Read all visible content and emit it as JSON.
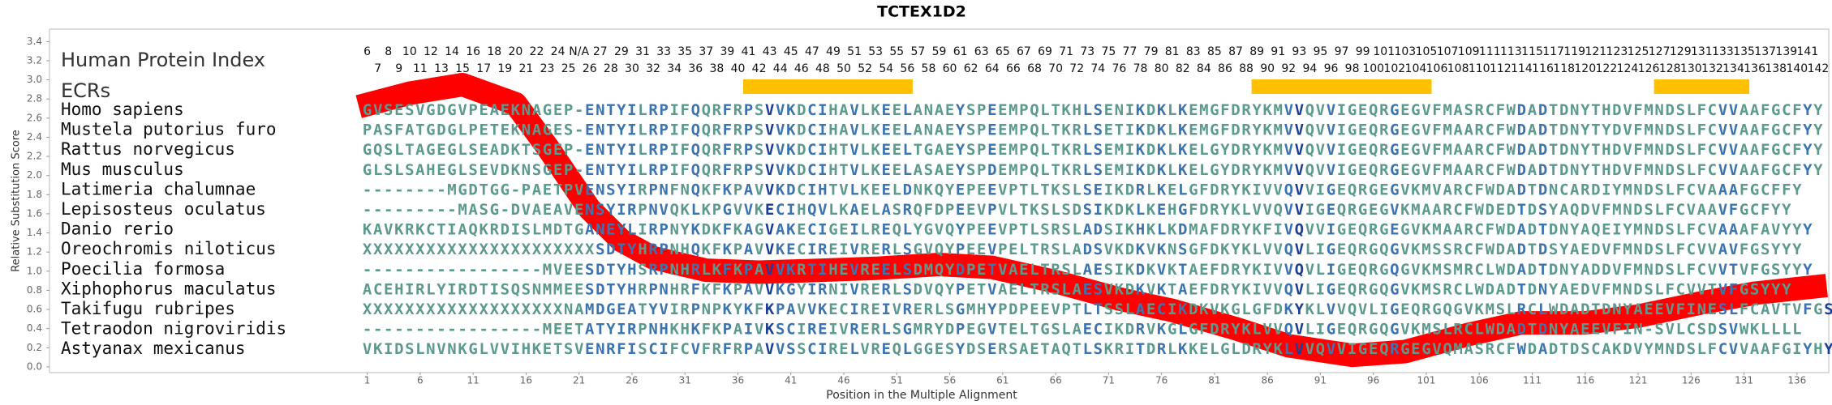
{
  "chart_data": {
    "type": "line",
    "title": "TCTEX1D2",
    "xlabel": "Position in the Multiple Alignment",
    "ylabel": "Relative Substitution Score",
    "index_label": "Human Protein Index",
    "ecr_label": "ECRs",
    "color": "#ff0000",
    "ecr_color": "#ffc000",
    "residue_colors": [
      "#5c9a8e",
      "#3c74b0",
      "#1c3f96"
    ],
    "xlim": [
      -29,
      139
    ],
    "ylim": [
      -0.06,
      3.53
    ],
    "xticks": [
      1,
      6,
      11,
      16,
      21,
      26,
      31,
      36,
      41,
      46,
      51,
      56,
      61,
      66,
      71,
      76,
      81,
      86,
      91,
      96,
      101,
      106,
      111,
      116,
      121,
      126,
      131,
      136
    ],
    "yticks": [
      {
        "value": 0,
        "label": "0.0"
      },
      0.2,
      0.4,
      0.6,
      0.8,
      {
        "value": 1,
        "label": "1.0"
      },
      1.2,
      1.4,
      1.6,
      1.8,
      {
        "value": 2,
        "label": "2.0"
      },
      2.2,
      2.4,
      2.6,
      2.8,
      {
        "value": 3,
        "label": "3.0"
      },
      3.2,
      3.4
    ],
    "x": [
      0.2,
      5,
      10,
      15,
      18,
      22,
      25,
      28,
      33,
      38,
      44,
      49,
      55,
      60,
      66,
      72,
      77,
      83,
      88,
      94,
      99,
      105,
      110,
      116,
      121,
      127,
      132,
      138.8
    ],
    "values": [
      2.72,
      2.86,
      2.95,
      2.75,
      2.3,
      1.65,
      1.32,
      1.14,
      1.01,
      0.99,
      1.01,
      1.03,
      1.07,
      1.04,
      0.89,
      0.71,
      0.59,
      0.4,
      0.22,
      0.12,
      0.16,
      0.34,
      0.46,
      0.46,
      0.53,
      0.67,
      0.77,
      0.85
    ],
    "ecrs": [
      [
        37,
        52
      ],
      [
        85,
        101
      ],
      [
        123,
        131
      ]
    ],
    "human_index": [
      6,
      7,
      8,
      9,
      10,
      11,
      12,
      13,
      14,
      15,
      16,
      17,
      18,
      19,
      20,
      21,
      22,
      23,
      24,
      25,
      "N/A",
      26,
      27,
      28,
      29,
      30,
      31,
      32,
      33,
      34,
      35,
      36,
      37,
      38,
      39,
      40,
      41,
      42,
      43,
      44,
      45,
      46,
      47,
      48,
      49,
      50,
      51,
      52,
      53,
      54,
      55,
      56,
      57,
      58,
      59,
      60,
      61,
      62,
      63,
      64,
      65,
      66,
      67,
      68,
      69,
      70,
      71,
      72,
      73,
      74,
      75,
      76,
      77,
      78,
      79,
      80,
      81,
      82,
      83,
      84,
      85,
      86,
      87,
      88,
      89,
      90,
      91,
      92,
      93,
      94,
      95,
      96,
      97,
      98,
      99,
      100,
      101,
      102,
      103,
      104,
      105,
      106,
      107,
      108,
      109,
      110,
      111,
      112,
      113,
      114,
      115,
      116,
      117,
      118,
      119,
      120,
      121,
      122,
      123,
      124,
      125,
      126,
      127,
      128,
      129,
      130,
      131,
      132,
      133,
      134,
      135,
      136,
      137,
      138,
      139,
      140,
      141,
      142
    ],
    "alignment": [
      {
        "name": "Homo sapiens",
        "sequence": "GVSESVGDGVPEAEKNAGEP-ENTYILRPIFQQRFRPSVVKDCIHAVLKEELANAEYSPEEMPQLTKHLSENIKDKLKEMGFDRYKMVVQVVIGEQRGEGVFMASRCFWDADTDNYTHDVFMNDSLFCVVAAFGCFYY"
      },
      {
        "name": "Mustela putorius furo",
        "sequence": "PASFATGDGLPETEKNAGES-ENTYILRPIFQQRFRPSVVKDCIHAVLKEELANAEYSPEEMPQLTKRLSETIKDKLKEMGFDRYKMVVQVVIGEQRGEGVFMAARCFWDADTDNYTYDVFMNDSLFCVVAAFGCFYY"
      },
      {
        "name": "Rattus norvegicus",
        "sequence": "GQSLTAGEGLSEADKTSGEP-ENTYILRPIFQQRFRPSVVKDCIHTVLKEELTGAEYSPEEMPQLTKRLSEMIKDKLKELGYDRYKMVVQVVIGEQRGEGVFMAARCFWDADTDNYTHDVFMNDSLFCVVAAFGCFYY"
      },
      {
        "name": "Mus musculus",
        "sequence": "GLSLSAHEGLSEVDKNSGEP-ENTYILRPIFQQRFRPSVVKDCIHTVLKEELASAEYSPDEMPQLTKRLSEMIKDKLKELGYDRYKMVVQVVIGEQRGEGVFMAARCFWDADTDNYTHDVFMNDSLFCVVAAFGCFYY"
      },
      {
        "name": "Latimeria chalumnae",
        "sequence": "--------MGDTGG-PAETPVENSYIRPNFNQKFKPAVVKDCIHTVLKEELDNKQYEPEEVPTLTKSLSEIKDRLKELGFDRYKIVVQVVIGEQRGEGVKMVARCFWDADTDNCARDIYMNDSLFCVAAAFGCFFY"
      },
      {
        "name": "Lepisosteus oculatus",
        "sequence": "---------MASG-DVAEAVENSYIRPNVQKLKPGVVKECIHQVLKAELASRQFDPEEVPVLTKSLSDSIKDKLKEHGFDRYKLVVQVVIGEQRGEGVKMAARCFWDEDTDSYAQDVFMNDSLFCVAAVFGCFYY"
      },
      {
        "name": "Danio rerio",
        "sequence": "KAVKRKCTIAQKRDISLMDTGANEYLIRPNYKDKFKAGVAKECIGEILREQLYGVQYPEEVPTLSRSLADSIKHKLKDMAFDRYKFIVQVVIGEQRGEGVKMAARCFWDADTDNYAQEIYMNDSLFCVAAAFAVYYY"
      },
      {
        "name": "Oreochromis niloticus",
        "sequence": "XXXXXXXXXXXXXXXXXXXXXXSDTYHRPNHQKFKPAVVKECIREIVRERLSGVQYPEEVPELTRSLADSVKDKVKNSGFDKYKLVVQVLIGEQRGQGVKMSSRCFWDADTDSYAEDVFMNDSLFCVVAVFGSYYY"
      },
      {
        "name": "Poecilia formosa",
        "sequence": "-----------------MVEESDTYHSRPNHRLKFKPAVVKRTIHEVREELSDMQYDPETVAELTRSLAESIKDKVKTAEFDRYKIVVQVLIGEQRGQGVKMSMRCLWDADTDNYADDVFMNDSLFCVVTVFGSYYY"
      },
      {
        "name": "Xiphophorus maculatus",
        "sequence": "ACEHIRLYIRDTISQSNMMEESDTYHRPNHRFKFKPAVVKGYIRNIVRERLSDVQYPETVAELTRSLAESVKDKVKTAEFDRYKIVVQVLIGEQRGQGVKMSRCLWDADTDNYAEDVFMNDSLFCVVTVFGSYYY"
      },
      {
        "name": "Takifugu rubripes",
        "sequence": "XXXXXXXXXXXXXXXXXXXNAMDGEATYVIRPNPKYKFKPAVVKECIREIVRERLSGMHYPDPEEVPTLTSSLAECIKDKVKGLGFDKYKLVVQVLIGEQRGQGVKMSLRCLWDADTDNYAEEVFINESLFCAVTVFGSYYY"
      },
      {
        "name": "Tetraodon nigroviridis",
        "sequence": "-----------------MEETATYIRPNHKHKFKPAIVKSCIREIVRERLSGMRYDPEGVTELTGSLAECIKDRVKGLGFDRYKLVVQVLIGEQRGQGVKMSLRCLWDADTDNYAEEVFIN-SVLCSDSVWKLLLL"
      },
      {
        "name": "Astyanax mexicanus",
        "sequence": "VKIDSLNVNKGLVVIHKETSVENRFISCIFCVFRFRPAVVSSCIRELVREQLGGESYDSERSAETAQTLSKRITDRLKKELGLDRYKLVVQVVIGEQRGEGVQMASRCFWDADTDSCAKDVYMNDSLFCVVAAFGIYHY"
      }
    ]
  }
}
